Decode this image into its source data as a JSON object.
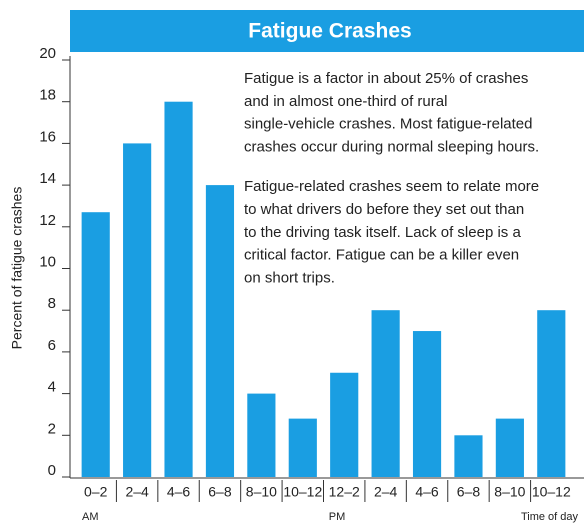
{
  "chart_data": {
    "type": "bar",
    "title": "Fatigue Crashes",
    "y_label": "Percent of fatigue crashes",
    "x_label": "Time of day",
    "period_labels": [
      "AM",
      "PM"
    ],
    "annotations": [
      [
        "Fatigue is a factor in about 25% of crashes",
        "and in almost one-third of rural",
        "single-vehicle crashes. Most fatigue-related",
        "crashes occur during normal sleeping hours."
      ],
      [
        "Fatigue-related crashes seem to relate more",
        "to what drivers do before they set out than",
        "to the driving task itself. Lack of sleep is a",
        "critical factor. Fatigue can be a killer even",
        "on short trips."
      ]
    ],
    "categories": [
      "0–2",
      "2–4",
      "4–6",
      "6–8",
      "8–10",
      "10–12",
      "12–2",
      "2–4",
      "4–6",
      "6–8",
      "8–10",
      "10–12"
    ],
    "values": [
      12.7,
      16,
      18,
      14,
      4,
      2.8,
      5,
      8,
      7,
      2,
      2.8,
      8
    ],
    "color": "#1a9ee2",
    "ylim": [
      0,
      20
    ],
    "yticks": [
      0,
      2,
      4,
      6,
      8,
      10,
      12,
      14,
      16,
      18,
      20
    ],
    "grid": false
  }
}
